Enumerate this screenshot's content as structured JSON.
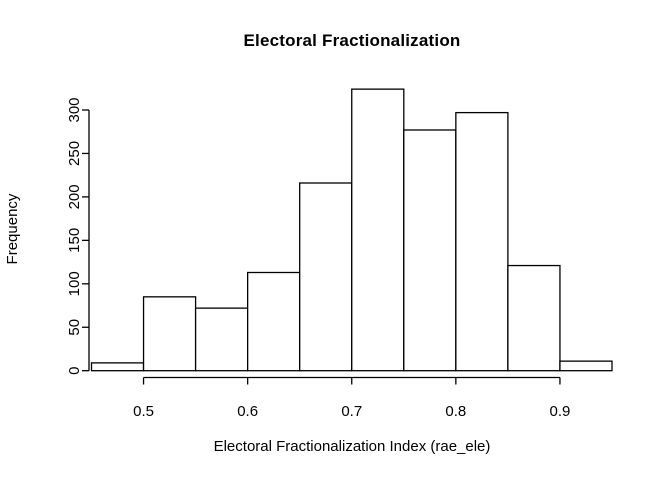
{
  "chart_data": {
    "type": "bar",
    "subtype": "histogram",
    "title": "Electoral Fractionalization",
    "xlabel": "Electoral Fractionalization Index (rae_ele)",
    "ylabel": "Frequency",
    "bin_edges": [
      0.45,
      0.5,
      0.55,
      0.6,
      0.65,
      0.7,
      0.75,
      0.8,
      0.85,
      0.9,
      0.95
    ],
    "values": [
      9,
      85,
      72,
      113,
      216,
      324,
      277,
      297,
      121,
      11
    ],
    "x_ticks": [
      "0.5",
      "0.6",
      "0.7",
      "0.8",
      "0.9"
    ],
    "x_tick_values": [
      0.5,
      0.6,
      0.7,
      0.8,
      0.9
    ],
    "y_ticks": [
      "0",
      "50",
      "100",
      "150",
      "200",
      "250",
      "300"
    ],
    "y_tick_values": [
      0,
      50,
      100,
      150,
      200,
      250,
      300
    ],
    "xlim": [
      0.45,
      0.95
    ],
    "ylim": [
      0,
      300
    ],
    "grid": false,
    "legend": null,
    "bar_fill": "#ffffff",
    "bar_stroke": "#000000",
    "axis_color": "#000000",
    "text_color": "#000000",
    "background": "#ffffff"
  }
}
